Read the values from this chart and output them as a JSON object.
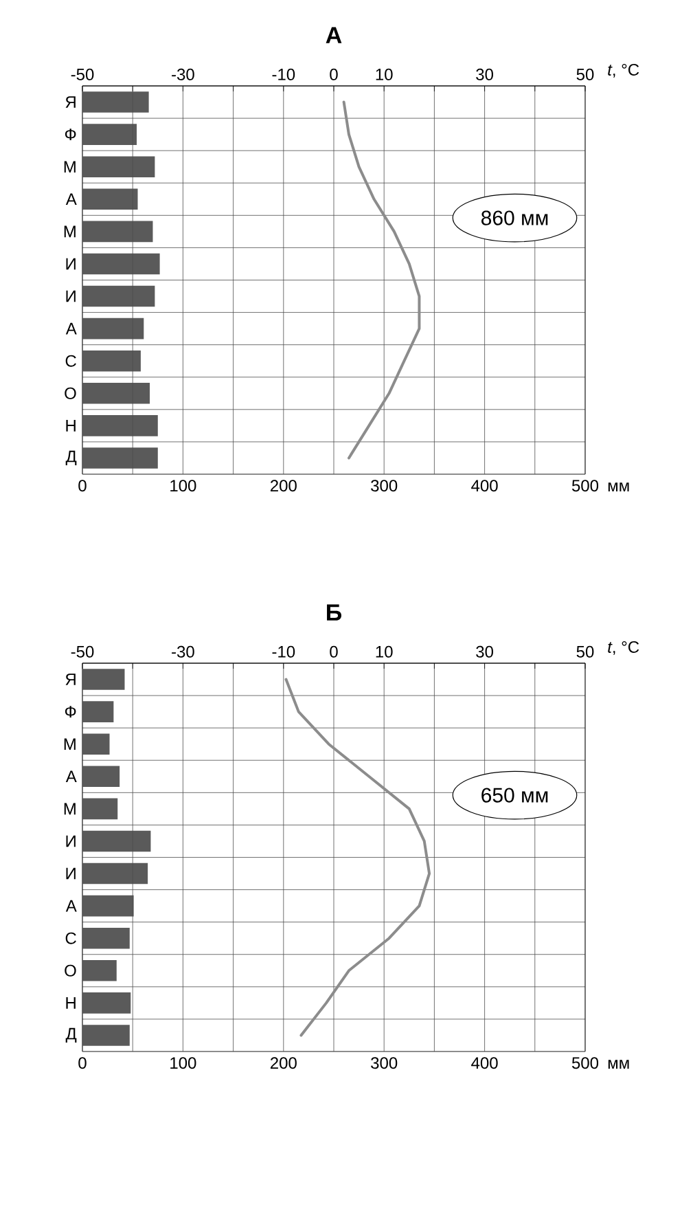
{
  "chart_data": [
    {
      "type": "bar",
      "orientation": "horizontal",
      "title": "А",
      "categories": [
        "Я",
        "Ф",
        "М",
        "А",
        "М",
        "И",
        "И",
        "А",
        "С",
        "О",
        "Н",
        "Д"
      ],
      "xlabel": "мм",
      "x2label": "*t*, °C",
      "xlim": [
        0,
        500
      ],
      "xticks": [
        0,
        100,
        200,
        300,
        400,
        500
      ],
      "x2lim": [
        -50,
        50
      ],
      "x2ticks": [
        -50,
        {
          "value": -40,
          "label": null
        },
        -30,
        {
          "value": -20,
          "label": null
        },
        -10,
        0,
        10,
        {
          "value": 20,
          "label": null
        },
        30,
        {
          "value": 40,
          "label": null
        },
        50
      ],
      "grid": true,
      "annotations": [
        "860 мм"
      ],
      "series": [
        {
          "color": "#5a5a5a",
          "values": [
            66,
            54,
            72,
            55,
            70,
            77,
            72,
            61,
            58,
            67,
            75,
            75
          ]
        },
        {
          "type": "line",
          "axis": "x2",
          "color": "#8c8c8c",
          "values": [
            2,
            3,
            5,
            8,
            12,
            15,
            17,
            17,
            14,
            11,
            7,
            3
          ]
        }
      ]
    },
    {
      "type": "bar",
      "orientation": "horizontal",
      "title": "Б",
      "categories": [
        "Я",
        "Ф",
        "М",
        "А",
        "М",
        "И",
        "И",
        "А",
        "С",
        "О",
        "Н",
        "Д"
      ],
      "xlabel": "мм",
      "x2label": "*t*, °C",
      "xlim": [
        0,
        500
      ],
      "xticks": [
        0,
        100,
        200,
        300,
        400,
        500
      ],
      "x2lim": [
        -50,
        50
      ],
      "x2ticks": [
        -50,
        {
          "value": -40,
          "label": null
        },
        -30,
        {
          "value": -20,
          "label": null
        },
        -10,
        0,
        10,
        {
          "value": 20,
          "label": null
        },
        30,
        {
          "value": 40,
          "label": null
        },
        50
      ],
      "grid": true,
      "annotations": [
        "650 мм"
      ],
      "series": [
        {
          "color": "#5a5a5a",
          "values": [
            42,
            31,
            27,
            37,
            35,
            68,
            65,
            51,
            47,
            34,
            48,
            47
          ]
        },
        {
          "type": "line",
          "axis": "x2",
          "color": "#8c8c8c",
          "values": [
            -9.5,
            -7,
            -1,
            7,
            15,
            18,
            19,
            17,
            11,
            3,
            -1.5,
            -6.5
          ]
        }
      ]
    }
  ]
}
